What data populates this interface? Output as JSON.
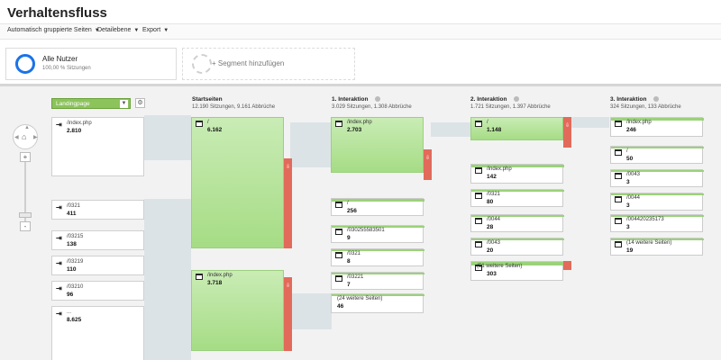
{
  "title": "Verhaltensfluss",
  "toolbar": {
    "item1": "Automatisch gruppierte Seiten",
    "item2": "Detailebene",
    "item3": "Export"
  },
  "segments": {
    "active_name": "Alle Nutzer",
    "active_sub": "100,00 % Sitzungen",
    "add_label": "+ Segment hinzufügen"
  },
  "landingpage_select": "Landingpage",
  "columns": {
    "c1": {
      "title": "Startseiten",
      "sub": "12.190 Sitzungen, 9.161 Abbrüche"
    },
    "c2": {
      "title": "1. Interaktion",
      "sub": "3.029 Sitzungen, 1.308 Abbrüche"
    },
    "c3": {
      "title": "2. Interaktion",
      "sub": "1.721 Sitzungen, 1.397 Abbrüche"
    },
    "c4": {
      "title": "3. Interaktion",
      "sub": "324 Sitzungen, 133 Abbrüche"
    }
  },
  "landing": [
    {
      "name": "/index.php",
      "value": "2.810"
    },
    {
      "name": "/0321",
      "value": "411"
    },
    {
      "name": "/03215",
      "value": "138"
    },
    {
      "name": "/03219",
      "value": "110"
    },
    {
      "name": "/03210",
      "value": "96"
    },
    {
      "name": "...",
      "value": "8.625"
    }
  ],
  "start": [
    {
      "name": "/",
      "value": "6.162"
    },
    {
      "name": "/index.php",
      "value": "3.718"
    }
  ],
  "i1": [
    {
      "name": "/index.php",
      "value": "2.703"
    },
    {
      "name": "/",
      "value": "256"
    },
    {
      "name": "/030255583501",
      "value": "9"
    },
    {
      "name": "/0321",
      "value": "8"
    },
    {
      "name": "/03221",
      "value": "7"
    },
    {
      "name": "(24 weitere Seiten)",
      "value": "46"
    }
  ],
  "i2": [
    {
      "name": "/",
      "value": "1.148"
    },
    {
      "name": "/index.php",
      "value": "142"
    },
    {
      "name": "/0321",
      "value": "80"
    },
    {
      "name": "/0044",
      "value": "28"
    },
    {
      "name": "/0043",
      "value": "20"
    },
    {
      "name": "(51 weitere Seiten)",
      "value": "303"
    }
  ],
  "i3": [
    {
      "name": "/index.php",
      "value": "246"
    },
    {
      "name": "/",
      "value": "50"
    },
    {
      "name": "/0043",
      "value": "3"
    },
    {
      "name": "/0044",
      "value": "3"
    },
    {
      "name": "/004420235173",
      "value": "3"
    },
    {
      "name": "(14 weitere Seiten)",
      "value": "19"
    }
  ],
  "colors": {
    "node_green": "#a6dc85",
    "drop_red": "#e26a5b",
    "ring_blue": "#1a73e8"
  }
}
